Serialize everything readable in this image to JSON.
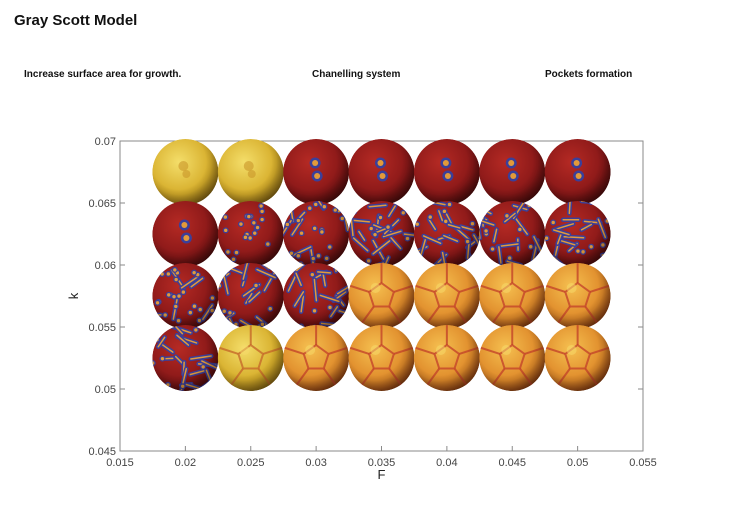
{
  "page": {
    "title": "Gray Scott Model",
    "section_labels": [
      "Increase surface area for growth.",
      "Chanelling system",
      "Pockets formation"
    ]
  },
  "chart_data": {
    "type": "scatter",
    "title": "",
    "xlabel": "F",
    "ylabel": "k",
    "xlim": [
      0.015,
      0.055
    ],
    "ylim": [
      0.045,
      0.07
    ],
    "xticks": [
      "0.015",
      "0.02",
      "0.025",
      "0.03",
      "0.035",
      "0.04",
      "0.045",
      "0.05",
      "0.055"
    ],
    "yticks": [
      "0.045",
      "0.05",
      "0.055",
      "0.06",
      "0.065",
      "0.07"
    ],
    "grid": false,
    "legend": "none",
    "points": [
      {
        "F": 0.02,
        "k": 0.0675,
        "pattern": "uniform-yellow"
      },
      {
        "F": 0.025,
        "k": 0.0675,
        "pattern": "uniform-yellow"
      },
      {
        "F": 0.03,
        "k": 0.0675,
        "pattern": "red-two-spots"
      },
      {
        "F": 0.035,
        "k": 0.0675,
        "pattern": "red-two-spots"
      },
      {
        "F": 0.04,
        "k": 0.0675,
        "pattern": "red-two-spots"
      },
      {
        "F": 0.045,
        "k": 0.0675,
        "pattern": "red-two-spots"
      },
      {
        "F": 0.05,
        "k": 0.0675,
        "pattern": "red-two-spots"
      },
      {
        "F": 0.02,
        "k": 0.0625,
        "pattern": "red-two-spots"
      },
      {
        "F": 0.025,
        "k": 0.0625,
        "pattern": "spots"
      },
      {
        "F": 0.03,
        "k": 0.0625,
        "pattern": "spots-stripes"
      },
      {
        "F": 0.035,
        "k": 0.0625,
        "pattern": "stripes"
      },
      {
        "F": 0.04,
        "k": 0.0625,
        "pattern": "stripes"
      },
      {
        "F": 0.045,
        "k": 0.0625,
        "pattern": "stripes"
      },
      {
        "F": 0.05,
        "k": 0.0625,
        "pattern": "stripes"
      },
      {
        "F": 0.02,
        "k": 0.0575,
        "pattern": "spots-stripes"
      },
      {
        "F": 0.025,
        "k": 0.0575,
        "pattern": "stripes"
      },
      {
        "F": 0.03,
        "k": 0.0575,
        "pattern": "stripes"
      },
      {
        "F": 0.035,
        "k": 0.0575,
        "pattern": "orange-cells"
      },
      {
        "F": 0.04,
        "k": 0.0575,
        "pattern": "orange-cells"
      },
      {
        "F": 0.045,
        "k": 0.0575,
        "pattern": "orange-cells"
      },
      {
        "F": 0.05,
        "k": 0.0575,
        "pattern": "orange-cells"
      },
      {
        "F": 0.02,
        "k": 0.0525,
        "pattern": "stripes"
      },
      {
        "F": 0.025,
        "k": 0.0525,
        "pattern": "yellow-cells"
      },
      {
        "F": 0.03,
        "k": 0.0525,
        "pattern": "orange-cells"
      },
      {
        "F": 0.035,
        "k": 0.0525,
        "pattern": "orange-cells"
      },
      {
        "F": 0.04,
        "k": 0.0525,
        "pattern": "orange-cells"
      },
      {
        "F": 0.045,
        "k": 0.0525,
        "pattern": "orange-cells"
      },
      {
        "F": 0.05,
        "k": 0.0525,
        "pattern": "orange-cells"
      }
    ]
  },
  "colors": {
    "axis": "#8a8a8a",
    "text": "#444444",
    "red_base": "#8e1a1a",
    "yellow_base": "#d9b630",
    "orange_base": "#e08a2a",
    "stripe_blue": "#3a3f9a",
    "spot_orange": "#e39a3a"
  }
}
